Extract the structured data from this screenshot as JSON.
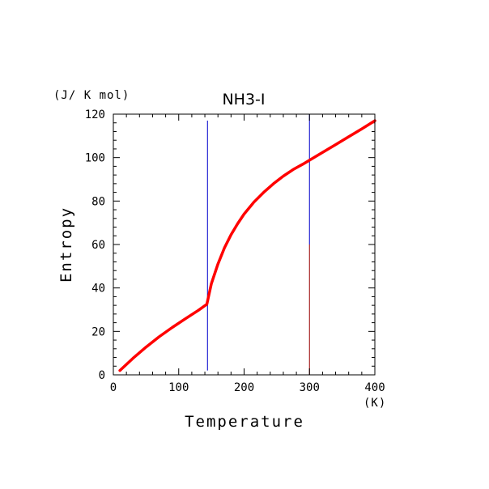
{
  "chart_data": {
    "type": "line",
    "title": "NH3-I",
    "xlabel": "Temperature",
    "ylabel": "Entropy",
    "x_unit": "(K)",
    "y_unit": "(J/ K mol)",
    "xlim": [
      0,
      400
    ],
    "ylim": [
      0,
      120
    ],
    "x_ticks": [
      0,
      100,
      200,
      300,
      400
    ],
    "x_tick_labels": [
      "0",
      "100",
      "200",
      "300",
      "400"
    ],
    "y_ticks": [
      0,
      20,
      40,
      60,
      80,
      100,
      120
    ],
    "y_tick_labels": [
      "0",
      "20",
      "40",
      "60",
      "80",
      "100",
      "120"
    ],
    "grid": false,
    "series": [
      {
        "color": "#ff0000",
        "x": [
          10,
          30,
          50,
          70,
          90,
          110,
          130,
          143,
          150,
          160,
          170,
          180,
          190,
          200,
          215,
          230,
          245,
          260,
          275,
          290,
          300,
          320,
          340,
          360,
          380,
          400
        ],
        "y": [
          2.0,
          7.6,
          12.8,
          17.5,
          21.8,
          25.8,
          29.7,
          32.5,
          42.0,
          51.0,
          58.5,
          64.5,
          69.5,
          74.0,
          79.5,
          84.0,
          88.0,
          91.5,
          94.5,
          97.0,
          98.8,
          102.4,
          106.0,
          109.6,
          113.2,
          117.0
        ]
      }
    ],
    "vlines": [
      {
        "x": 144,
        "y_range": [
          2,
          117
        ],
        "color": "#0000cc"
      },
      {
        "x": 300,
        "y_range": [
          60,
          120
        ],
        "color": "#0000cc"
      },
      {
        "x": 300,
        "y_range": [
          0,
          60
        ],
        "color": "#990000"
      }
    ]
  }
}
